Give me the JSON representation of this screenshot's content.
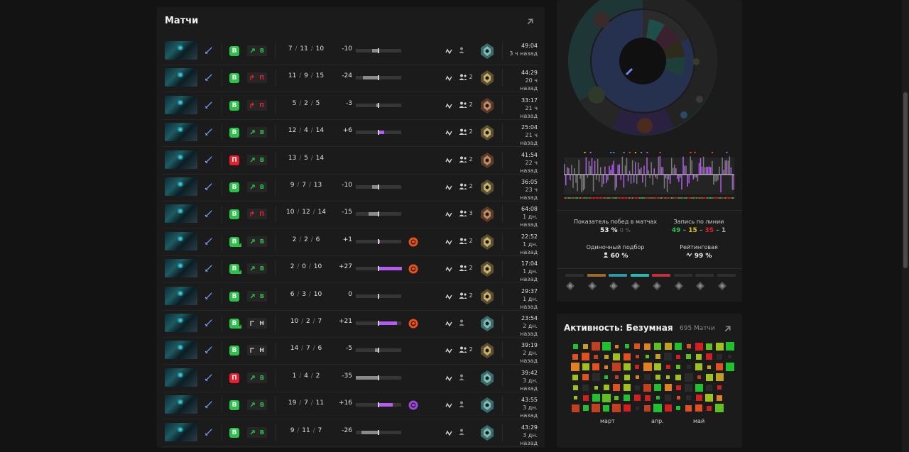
{
  "matches": {
    "title": "Матчи",
    "rows": [
      {
        "result": "В",
        "win": true,
        "party_icon": false,
        "lane": "В",
        "lane_color": "g",
        "kda": [
          "7",
          "11",
          "10"
        ],
        "delta": "-10",
        "bar": -10,
        "medal": "",
        "ranked": true,
        "party": "",
        "time": "49:04",
        "ago": "3 ч назад",
        "rank": "diamond"
      },
      {
        "result": "В",
        "win": true,
        "party_icon": false,
        "lane": "П",
        "lane_color": "r",
        "kda": [
          "11",
          "9",
          "15"
        ],
        "delta": "-24",
        "bar": -24,
        "medal": "",
        "ranked": true,
        "party": "2",
        "time": "44:29",
        "ago": "20 ч назад",
        "rank": "gold"
      },
      {
        "result": "В",
        "win": true,
        "party_icon": false,
        "lane": "П",
        "lane_color": "r",
        "kda": [
          "5",
          "2",
          "5"
        ],
        "delta": "-3",
        "bar": -3,
        "medal": "",
        "ranked": true,
        "party": "2",
        "time": "33:17",
        "ago": "21 ч назад",
        "rank": "bronze"
      },
      {
        "result": "В",
        "win": true,
        "party_icon": false,
        "lane": "В",
        "lane_color": "g",
        "kda": [
          "12",
          "4",
          "14"
        ],
        "delta": "+6",
        "bar": 6,
        "medal": "",
        "ranked": true,
        "party": "2",
        "time": "25:04",
        "ago": "21 ч назад",
        "rank": "gold"
      },
      {
        "result": "П",
        "win": false,
        "party_icon": false,
        "lane": "В",
        "lane_color": "g",
        "kda": [
          "13",
          "5",
          "14"
        ],
        "delta": "",
        "bar": null,
        "medal": "",
        "ranked": true,
        "party": "2",
        "time": "41:54",
        "ago": "22 ч назад",
        "rank": "bronze"
      },
      {
        "result": "В",
        "win": true,
        "party_icon": false,
        "lane": "В",
        "lane_color": "g",
        "kda": [
          "9",
          "7",
          "13"
        ],
        "delta": "-10",
        "bar": -10,
        "medal": "",
        "ranked": true,
        "party": "2",
        "time": "36:05",
        "ago": "23 ч назад",
        "rank": "gold"
      },
      {
        "result": "В",
        "win": true,
        "party_icon": false,
        "lane": "П",
        "lane_color": "r",
        "kda": [
          "10",
          "12",
          "14"
        ],
        "delta": "-15",
        "bar": -15,
        "medal": "",
        "ranked": true,
        "party": "3",
        "time": "64:08",
        "ago": "1 дн. назад",
        "rank": "bronze"
      },
      {
        "result": "В",
        "win": true,
        "party_icon": true,
        "lane": "В",
        "lane_color": "g",
        "kda": [
          "2",
          "2",
          "6"
        ],
        "delta": "+1",
        "bar": 1,
        "medal": "orange",
        "ranked": true,
        "party": "2",
        "time": "22:52",
        "ago": "1 дн. назад",
        "rank": "gold"
      },
      {
        "result": "В",
        "win": true,
        "party_icon": true,
        "lane": "В",
        "lane_color": "g",
        "kda": [
          "2",
          "0",
          "10"
        ],
        "delta": "+27",
        "bar": 27,
        "medal": "orange",
        "ranked": true,
        "party": "2",
        "time": "17:04",
        "ago": "1 дн. назад",
        "rank": "gold"
      },
      {
        "result": "В",
        "win": true,
        "party_icon": false,
        "lane": "В",
        "lane_color": "g",
        "kda": [
          "6",
          "3",
          "10"
        ],
        "delta": "0",
        "bar": 0,
        "medal": "",
        "ranked": true,
        "party": "2",
        "time": "29:37",
        "ago": "1 дн. назад",
        "rank": "gold"
      },
      {
        "result": "В",
        "win": true,
        "party_icon": true,
        "lane": "Н",
        "lane_color": "w",
        "kda": [
          "10",
          "2",
          "7"
        ],
        "delta": "+21",
        "bar": 21,
        "medal": "orange",
        "ranked": true,
        "party": "",
        "time": "23:54",
        "ago": "2 дн. назад",
        "rank": "diamond"
      },
      {
        "result": "В",
        "win": true,
        "party_icon": false,
        "lane": "Н",
        "lane_color": "w",
        "kda": [
          "14",
          "7",
          "6"
        ],
        "delta": "-5",
        "bar": -5,
        "medal": "",
        "ranked": true,
        "party": "2",
        "time": "39:19",
        "ago": "2 дн. назад",
        "rank": "gold"
      },
      {
        "result": "П",
        "win": false,
        "party_icon": false,
        "lane": "В",
        "lane_color": "g",
        "kda": [
          "1",
          "4",
          "2"
        ],
        "delta": "-35",
        "bar": -35,
        "medal": "",
        "ranked": true,
        "party": "",
        "time": "39:42",
        "ago": "3 дн. назад",
        "rank": "diamond"
      },
      {
        "result": "В",
        "win": true,
        "party_icon": false,
        "lane": "В",
        "lane_color": "g",
        "kda": [
          "19",
          "7",
          "11"
        ],
        "delta": "+16",
        "bar": 16,
        "medal": "purple",
        "ranked": true,
        "party": "",
        "time": "43:55",
        "ago": "3 дн. назад",
        "rank": "diamond"
      },
      {
        "result": "В",
        "win": true,
        "party_icon": false,
        "lane": "В",
        "lane_color": "g",
        "kda": [
          "9",
          "11",
          "7"
        ],
        "delta": "-26",
        "bar": -26,
        "medal": "",
        "ranked": true,
        "party": "",
        "time": "43:29",
        "ago": "3 дн. назад",
        "rank": "diamond"
      }
    ]
  },
  "stats": {
    "winrate_label": "Показатель побед в матчах",
    "winrate_value": "53 %",
    "winrate_sub": "0 %",
    "lane_label": "Запись по линии",
    "lane_w": "49",
    "lane_d": "15",
    "lane_l": "35",
    "lane_x": "1",
    "solo_label": "Одиночный подбор",
    "solo_value": "60 %",
    "ranked_label": "Рейтинговая",
    "ranked_value": "99 %"
  },
  "activity": {
    "title": "Активность: Безумная",
    "count": "695 Матчи",
    "months": [
      "март",
      "апр.",
      "май"
    ]
  },
  "colors": {
    "win": "#2cc24a",
    "loss": "#e81e2c",
    "accent": "#b45cf0",
    "bg": "#131313",
    "panel": "#1b1b1b"
  }
}
